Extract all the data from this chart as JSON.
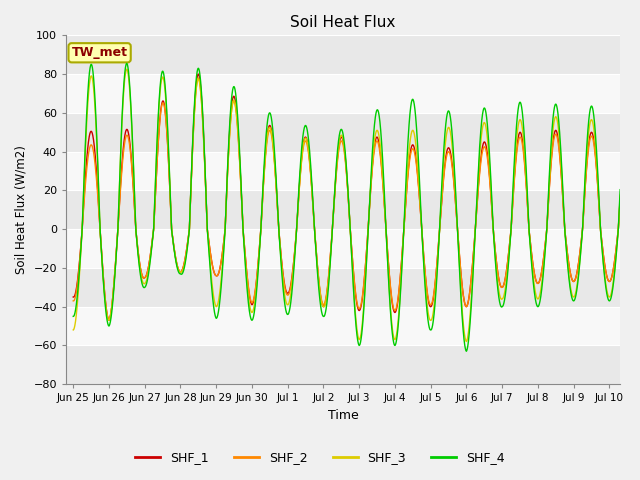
{
  "title": "Soil Heat Flux",
  "ylabel": "Soil Heat Flux (W/m2)",
  "xlabel": "Time",
  "ylim": [
    -80,
    100
  ],
  "background_color": "#f0f0f0",
  "plot_bg_color": "#ffffff",
  "stripe_colors": [
    "#e8e8e8",
    "#f8f8f8"
  ],
  "grid_color": "#e0e0e0",
  "colors": {
    "SHF_1": "#cc0000",
    "SHF_2": "#ff8800",
    "SHF_3": "#ddcc00",
    "SHF_4": "#00cc00"
  },
  "legend_label": "TW_met",
  "xtick_labels": [
    "Jun 25",
    "Jun 26",
    "Jun 27",
    "Jun 28",
    "Jun 29",
    "Jun 30",
    "Jul 1",
    "Jul 2",
    "Jul 3",
    "Jul 4",
    "Jul 5",
    "Jul 6",
    "Jul 7",
    "Jul 8",
    "Jul 9",
    "Jul 10"
  ],
  "xtick_positions": [
    0,
    1,
    2,
    3,
    4,
    5,
    6,
    7,
    8,
    9,
    10,
    11,
    12,
    13,
    14,
    15
  ],
  "day_peaks_shf4": [
    78,
    92,
    79,
    84,
    82,
    65,
    55,
    52,
    51,
    72,
    62,
    60,
    65,
    66,
    63,
    64
  ],
  "day_peaks_shf3": [
    70,
    88,
    77,
    80,
    75,
    58,
    47,
    47,
    50,
    52,
    50,
    55,
    55,
    58,
    58,
    55
  ],
  "day_peaks_shf1": [
    50,
    51,
    52,
    80,
    80,
    57,
    50,
    45,
    50,
    45,
    42,
    42,
    48,
    52,
    50,
    50
  ],
  "day_peaks_shf2": [
    42,
    45,
    52,
    78,
    78,
    54,
    48,
    43,
    48,
    43,
    40,
    40,
    45,
    50,
    48,
    48
  ],
  "night_shf4": [
    45,
    50,
    30,
    23,
    46,
    47,
    44,
    45,
    60,
    60,
    52,
    63,
    40,
    40,
    37,
    37
  ],
  "night_shf3": [
    52,
    47,
    28,
    22,
    40,
    43,
    39,
    40,
    57,
    57,
    47,
    58,
    36,
    36,
    35,
    35
  ],
  "night_shf1": [
    35,
    47,
    25,
    22,
    24,
    39,
    33,
    40,
    42,
    43,
    40,
    40,
    30,
    28,
    27,
    27
  ],
  "night_shf2": [
    37,
    47,
    25,
    22,
    24,
    38,
    34,
    39,
    41,
    42,
    39,
    40,
    30,
    28,
    27,
    27
  ]
}
